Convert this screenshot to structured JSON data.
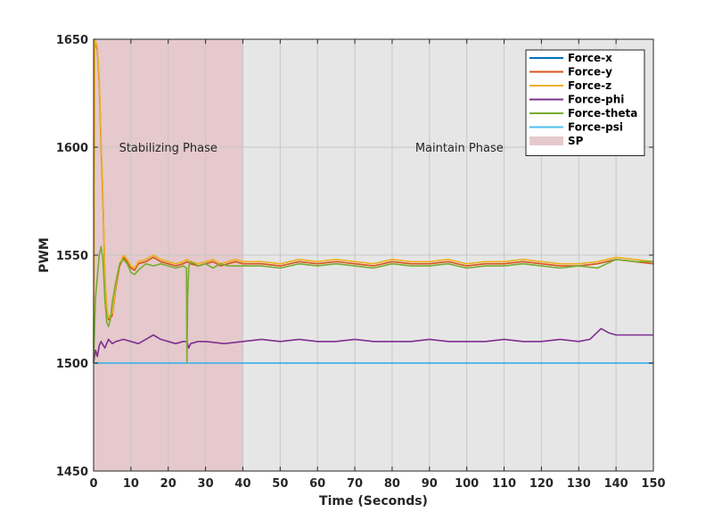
{
  "chart_data": {
    "type": "line",
    "title": "",
    "xlabel": "Time (Seconds)",
    "ylabel": "PWM",
    "xlim": [
      0,
      150
    ],
    "ylim": [
      1450,
      1650
    ],
    "xticks": [
      0,
      10,
      20,
      30,
      40,
      50,
      60,
      70,
      80,
      90,
      100,
      110,
      120,
      130,
      140,
      150
    ],
    "yticks": [
      1450,
      1500,
      1550,
      1600,
      1650
    ],
    "grid": true,
    "legend_position": "top-right",
    "regions": [
      {
        "name": "SP",
        "label": "Stabilizing Phase",
        "x_start": 0,
        "x_end": 40,
        "color": "#e5c9cc",
        "label_x": 20,
        "label_y": 1600
      },
      {
        "name": "",
        "label": "Maintain Phase",
        "x_start": 40,
        "x_end": 150,
        "color": "#e6e6e6",
        "label_x": 98,
        "label_y": 1600
      }
    ],
    "series": [
      {
        "name": "Force-x",
        "color": "#0072bd",
        "x": [
          0,
          150
        ],
        "y": [
          1500,
          1500
        ]
      },
      {
        "name": "Force-y",
        "color": "#d95319",
        "x": [
          0,
          0.3,
          0.5,
          1,
          1.5,
          2,
          2.5,
          3,
          3.5,
          4,
          5,
          6,
          7,
          8,
          9,
          10,
          11,
          12,
          14,
          16,
          18,
          20,
          22,
          24,
          25,
          26,
          28,
          30,
          32,
          34,
          36,
          38,
          40,
          45,
          50,
          55,
          60,
          65,
          70,
          75,
          80,
          85,
          90,
          95,
          100,
          105,
          110,
          115,
          120,
          125,
          130,
          135,
          140,
          145,
          150
        ],
        "y": [
          1500,
          1650,
          1648,
          1645,
          1630,
          1600,
          1575,
          1540,
          1525,
          1520,
          1522,
          1535,
          1545,
          1549,
          1547,
          1544,
          1543,
          1546,
          1547,
          1549,
          1547,
          1546,
          1545,
          1546,
          1547,
          1546,
          1545,
          1546,
          1547,
          1545,
          1546,
          1547,
          1546,
          1546,
          1545,
          1547,
          1546,
          1547,
          1546,
          1545,
          1547,
          1546,
          1546,
          1547,
          1545,
          1546,
          1546,
          1547,
          1546,
          1545,
          1545,
          1546,
          1548,
          1547,
          1546
        ]
      },
      {
        "name": "Force-z",
        "color": "#edb120",
        "x": [
          0,
          0.3,
          0.5,
          1,
          1.5,
          2,
          2.5,
          3,
          3.5,
          4,
          5,
          6,
          7,
          8,
          9,
          10,
          11,
          12,
          14,
          16,
          18,
          20,
          22,
          24,
          25,
          26,
          28,
          30,
          32,
          34,
          36,
          38,
          40,
          45,
          50,
          55,
          60,
          65,
          70,
          75,
          80,
          85,
          90,
          95,
          100,
          105,
          110,
          115,
          120,
          125,
          130,
          135,
          140,
          145,
          150
        ],
        "y": [
          1500,
          1650,
          1649,
          1646,
          1632,
          1602,
          1578,
          1542,
          1526,
          1521,
          1523,
          1536,
          1546,
          1550,
          1548,
          1545,
          1544,
          1547,
          1548,
          1550,
          1548,
          1547,
          1546,
          1547,
          1548,
          1547,
          1546,
          1547,
          1548,
          1546,
          1547,
          1548,
          1547,
          1547,
          1546,
          1548,
          1547,
          1548,
          1547,
          1546,
          1548,
          1547,
          1547,
          1548,
          1546,
          1547,
          1547,
          1548,
          1547,
          1546,
          1546,
          1547,
          1549,
          1548,
          1547
        ]
      },
      {
        "name": "Force-phi",
        "color": "#7e2f8e",
        "x": [
          0,
          0.5,
          1,
          1.5,
          2,
          3,
          4,
          5,
          6,
          8,
          10,
          12,
          14,
          16,
          18,
          20,
          22,
          24,
          25,
          25.5,
          26,
          28,
          30,
          35,
          40,
          45,
          50,
          55,
          60,
          65,
          70,
          75,
          80,
          85,
          90,
          95,
          100,
          105,
          110,
          115,
          120,
          125,
          130,
          133,
          136,
          138,
          140,
          145,
          150
        ],
        "y": [
          1500,
          1506,
          1503,
          1508,
          1510,
          1507,
          1511,
          1509,
          1510,
          1511,
          1510,
          1509,
          1511,
          1513,
          1511,
          1510,
          1509,
          1510,
          1510,
          1507,
          1509,
          1510,
          1510,
          1509,
          1510,
          1511,
          1510,
          1511,
          1510,
          1510,
          1511,
          1510,
          1510,
          1510,
          1511,
          1510,
          1510,
          1510,
          1511,
          1510,
          1510,
          1511,
          1510,
          1511,
          1516,
          1514,
          1513,
          1513,
          1513
        ]
      },
      {
        "name": "Force-theta",
        "color": "#77ac30",
        "x": [
          0,
          0.5,
          1,
          1.5,
          2,
          2.5,
          3,
          3.5,
          4,
          4.5,
          5,
          6,
          7,
          8,
          9,
          10,
          11,
          12,
          14,
          16,
          18,
          20,
          22,
          24,
          24.9,
          25,
          25.2,
          25.5,
          26,
          28,
          30,
          32,
          34,
          36,
          38,
          40,
          45,
          50,
          55,
          60,
          65,
          70,
          75,
          80,
          85,
          90,
          95,
          100,
          105,
          110,
          115,
          120,
          125,
          130,
          135,
          140,
          145,
          150
        ],
        "y": [
          1500,
          1530,
          1540,
          1550,
          1554,
          1548,
          1530,
          1519,
          1517,
          1520,
          1528,
          1538,
          1546,
          1548,
          1546,
          1542,
          1541,
          1543,
          1546,
          1545,
          1546,
          1545,
          1544,
          1545,
          1544,
          1500,
          1530,
          1545,
          1547,
          1545,
          1546,
          1544,
          1546,
          1545,
          1545,
          1545,
          1545,
          1544,
          1546,
          1545,
          1546,
          1545,
          1544,
          1546,
          1545,
          1545,
          1546,
          1544,
          1545,
          1545,
          1546,
          1545,
          1544,
          1545,
          1544,
          1548,
          1547,
          1547
        ]
      },
      {
        "name": "Force-psi",
        "color": "#4dbeee",
        "x": [
          0,
          150
        ],
        "y": [
          1500,
          1500
        ]
      }
    ]
  }
}
